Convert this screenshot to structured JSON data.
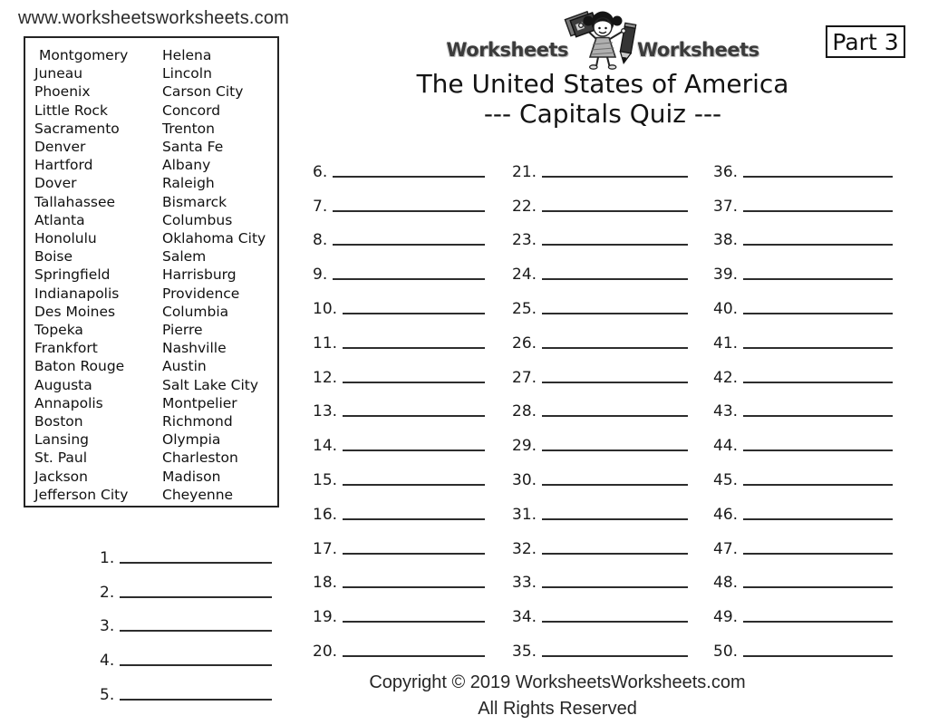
{
  "page": {
    "url": "www.worksheetsworksheets.com",
    "part_label": "Part 3",
    "title_line1": "The United States of America",
    "title_line2": "--- Capitals Quiz ---",
    "copyright_line1": "Copyright © 2019 WorksheetsWorksheets.com",
    "copyright_line2": "All Rights Reserved"
  },
  "logo": {
    "left_text": "Worksheets",
    "right_text": "Worksheets",
    "mascot_icon": "child-with-books-and-pencil"
  },
  "colors": {
    "ink": "#1d1d1d",
    "line": "#2d2d2d",
    "logo_gray": "#3b3b3b",
    "dress_gray": "#b0b0b0"
  },
  "capitals": {
    "left": [
      "Montgomery",
      "Juneau",
      "Phoenix",
      "Little Rock",
      "Sacramento",
      "Denver",
      "Hartford",
      "Dover",
      "Tallahassee",
      "Atlanta",
      "Honolulu",
      "Boise",
      "Springfield",
      "Indianapolis",
      "Des Moines",
      "Topeka",
      "Frankfort",
      "Baton Rouge",
      "Augusta",
      "Annapolis",
      "Boston",
      "Lansing",
      "St. Paul",
      "Jackson",
      "Jefferson City"
    ],
    "right": [
      "Helena",
      "Lincoln",
      "Carson City",
      "Concord",
      "Trenton",
      "Santa Fe",
      "Albany",
      "Raleigh",
      "Bismarck",
      "Columbus",
      "Oklahoma City",
      "Salem",
      "Harrisburg",
      "Providence",
      "Columbia",
      "Pierre",
      "Nashville",
      "Austin",
      "Salt Lake City",
      "Montpelier",
      "Richmond",
      "Olympia",
      "Charleston",
      "Madison",
      "Cheyenne"
    ]
  },
  "answers": {
    "intro": [
      1,
      2,
      3,
      4,
      5
    ],
    "col1": [
      6,
      7,
      8,
      9,
      10,
      11,
      12,
      13,
      14,
      15,
      16,
      17,
      18,
      19,
      20
    ],
    "col2": [
      21,
      22,
      23,
      24,
      25,
      26,
      27,
      28,
      29,
      30,
      31,
      32,
      33,
      34,
      35
    ],
    "col3": [
      36,
      37,
      38,
      39,
      40,
      41,
      42,
      43,
      44,
      45,
      46,
      47,
      48,
      49,
      50
    ]
  }
}
